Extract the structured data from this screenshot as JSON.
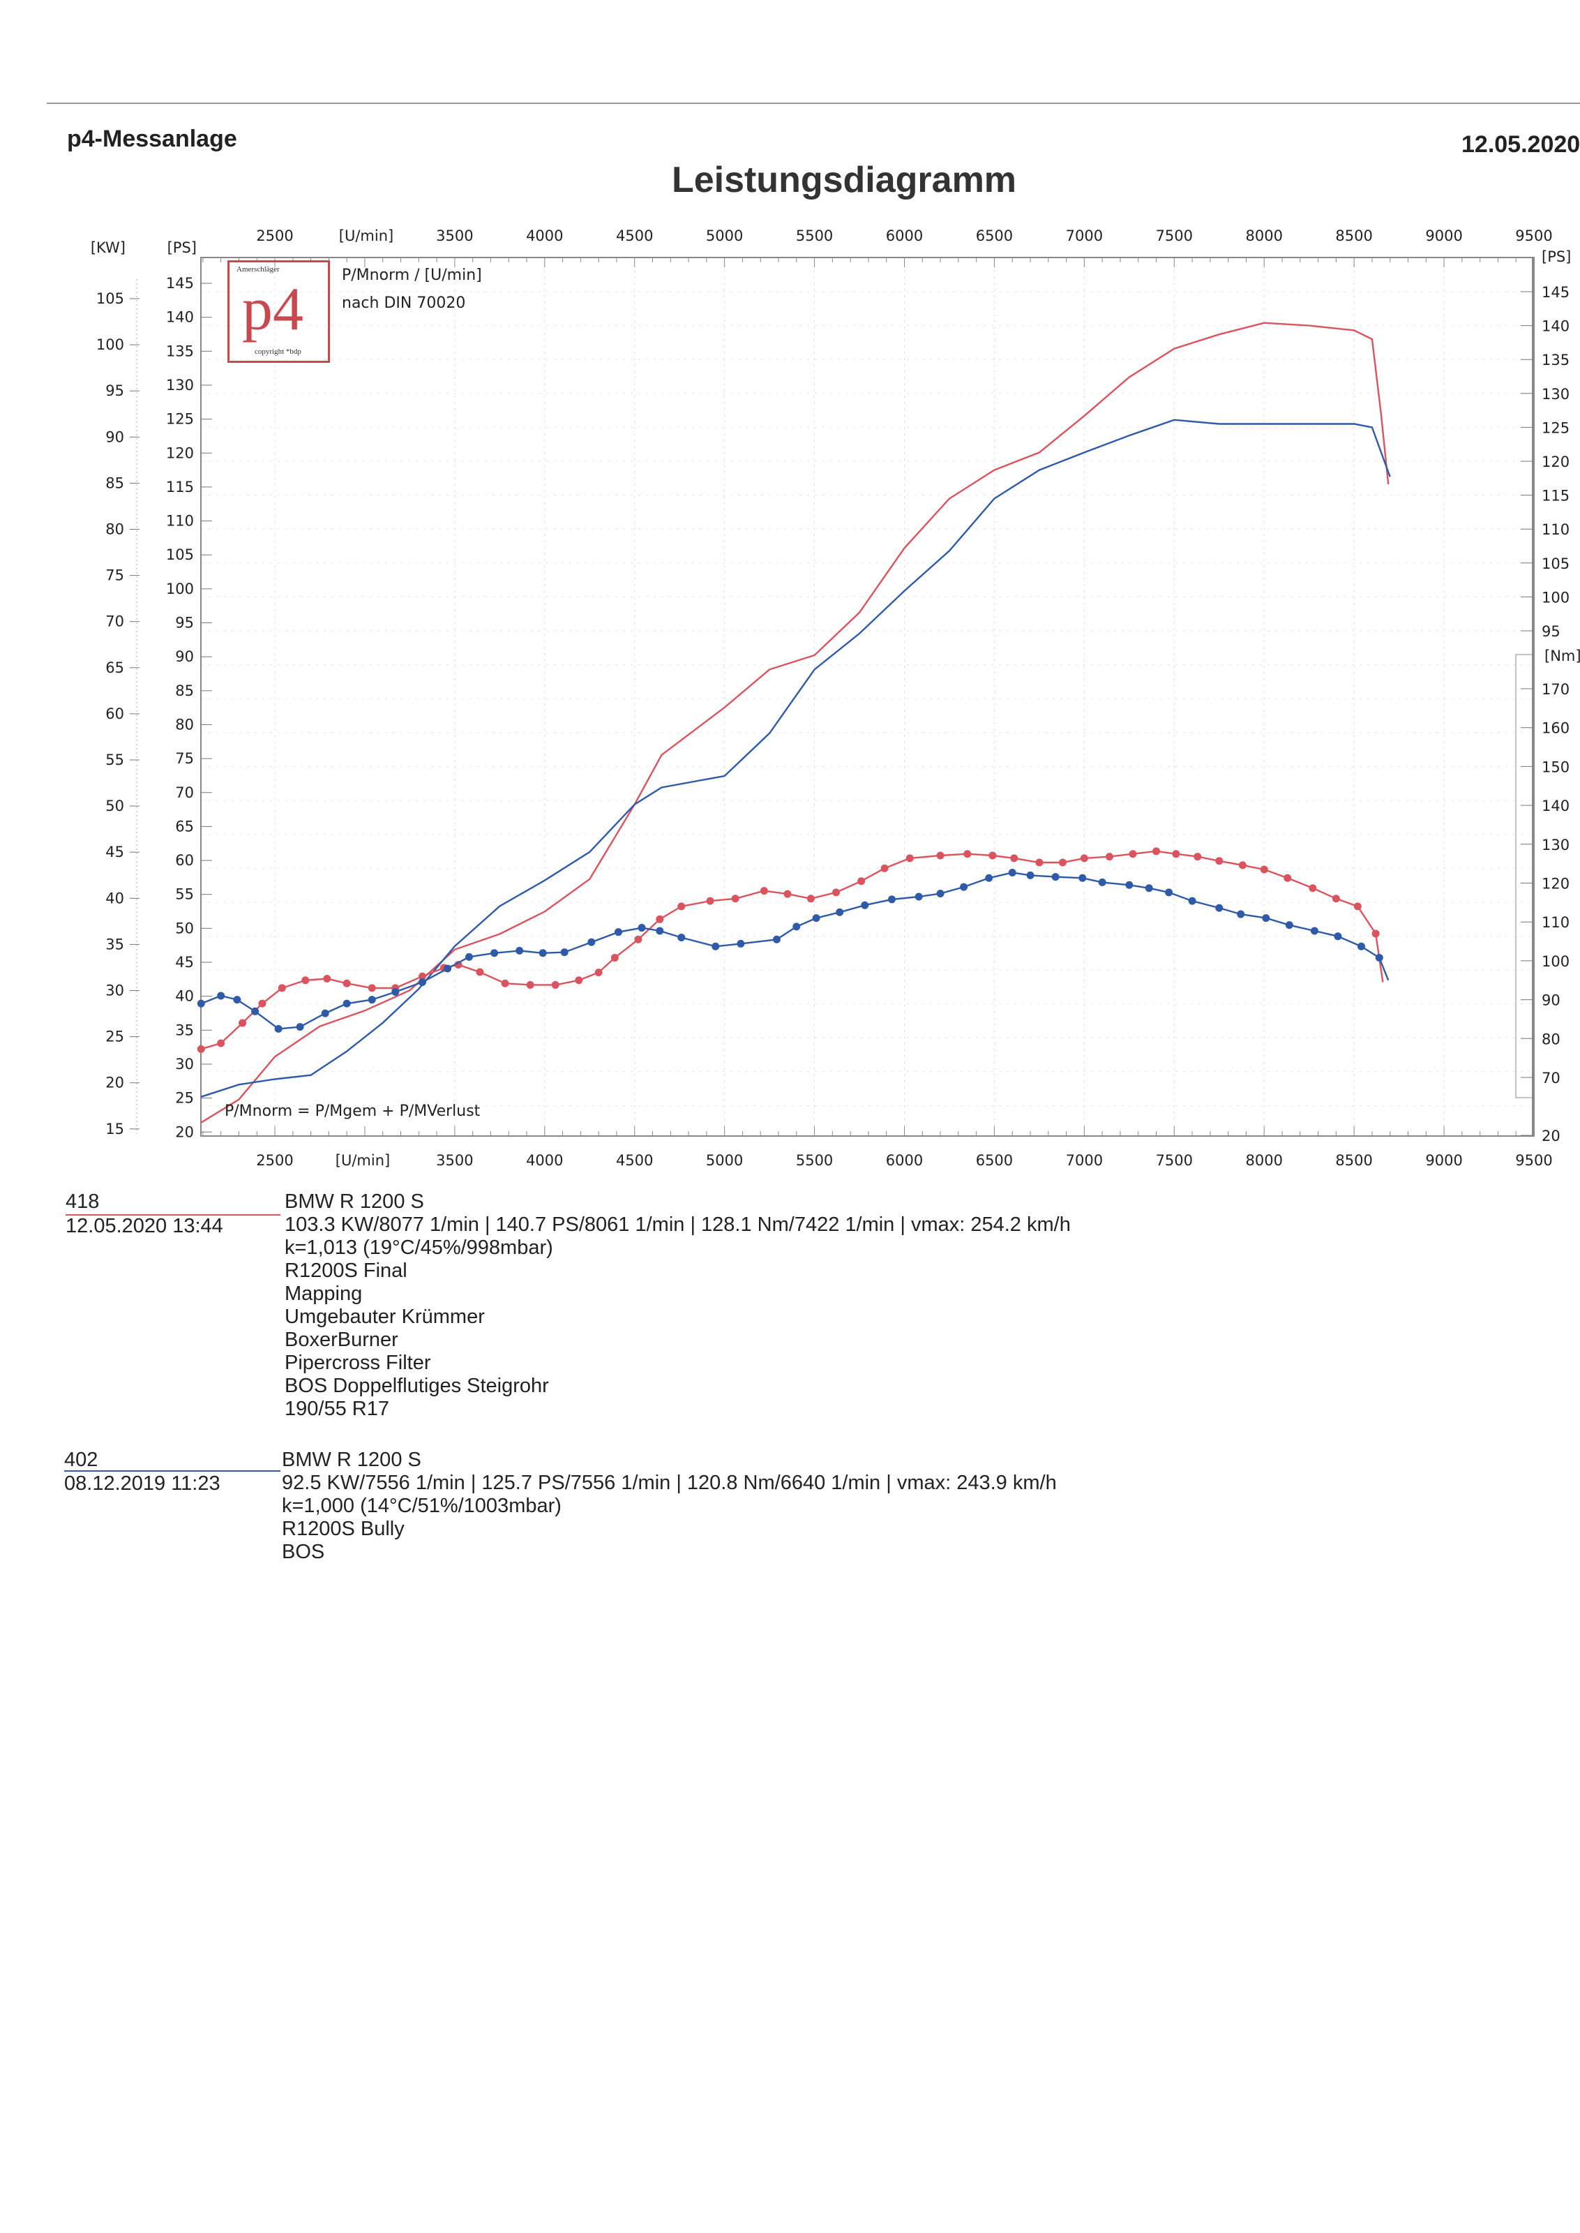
{
  "header": {
    "app": "p4-Messanlage",
    "date": "12.05.2020",
    "title": "Leistungsdiagramm"
  },
  "legend": {
    "line1": "P/Mnorm / [U/min]",
    "line2": "nach DIN 70020",
    "formula": "P/Mnorm = P/Mgem + P/MVerlust"
  },
  "logo": {
    "text": "p4",
    "top": "Amerschläger",
    "bottom": "copyright *bdp"
  },
  "colors": {
    "run_2020": "#d9545e",
    "run_2019": "#2e5aa8"
  },
  "chart_data": {
    "type": "line",
    "title": "Leistungsdiagramm",
    "xlabel": "[U/min]",
    "x_ticks": [
      2500,
      3500,
      4000,
      4500,
      5000,
      5500,
      6000,
      6500,
      7000,
      7500,
      8000,
      8500,
      9000,
      9500
    ],
    "xlim": [
      2090,
      9500
    ],
    "axes": {
      "kw": {
        "label": "[KW]",
        "ticks": [
          15,
          20,
          25,
          30,
          35,
          40,
          45,
          50,
          55,
          60,
          65,
          70,
          75,
          80,
          85,
          90,
          95,
          100,
          105
        ]
      },
      "ps_left": {
        "label": "[PS]",
        "ticks": [
          20,
          25,
          30,
          35,
          40,
          45,
          50,
          55,
          60,
          65,
          70,
          75,
          80,
          85,
          90,
          95,
          100,
          105,
          110,
          115,
          120,
          125,
          130,
          135,
          140,
          145
        ]
      },
      "ps_right": {
        "label": "[PS]",
        "ticks": [
          20,
          95,
          100,
          105,
          110,
          115,
          120,
          125,
          130,
          135,
          140,
          145
        ]
      },
      "nm": {
        "label": "[Nm]",
        "ticks": [
          70,
          80,
          90,
          100,
          110,
          120,
          130,
          140,
          150,
          160,
          170
        ]
      }
    },
    "grid": true,
    "series": [
      {
        "run": "418",
        "kind": "power_ps",
        "color": "#d9545e",
        "rpm": [
          2090,
          2300,
          2500,
          2750,
          3000,
          3250,
          3500,
          3750,
          4000,
          4250,
          4500,
          4650,
          5000,
          5250,
          5500,
          5750,
          6000,
          6250,
          6500,
          6750,
          7000,
          7250,
          7500,
          7750,
          8000,
          8250,
          8500,
          8600,
          8650,
          8690
        ],
        "values": [
          22.5,
          25.9,
          32.2,
          36.7,
          39,
          42,
          48,
          50.3,
          53.6,
          58.4,
          69.4,
          76.7,
          83.7,
          89.3,
          91.4,
          97.7,
          107.2,
          114.5,
          118.7,
          121.3,
          126.7,
          132.4,
          136.6,
          138.7,
          140.4,
          140,
          139.3,
          138,
          127,
          116.6
        ]
      },
      {
        "run": "402",
        "kind": "power_ps",
        "color": "#2e5aa8",
        "rpm": [
          2090,
          2300,
          2500,
          2700,
          2900,
          3100,
          3300,
          3500,
          3750,
          4000,
          4250,
          4500,
          4650,
          5000,
          5250,
          5500,
          5750,
          6000,
          6250,
          6500,
          6750,
          7000,
          7250,
          7500,
          7750,
          8000,
          8250,
          8500,
          8600,
          8700
        ],
        "values": [
          26.3,
          28.1,
          28.9,
          29.5,
          33,
          37.2,
          42.2,
          48.5,
          54.4,
          58.2,
          62.4,
          69.4,
          71.9,
          73.6,
          79.9,
          89.3,
          94.6,
          100.9,
          106.8,
          114.5,
          118.7,
          121.3,
          123.8,
          126.1,
          125.5,
          125.5,
          125.5,
          125.5,
          125,
          117.7
        ]
      },
      {
        "run": "418",
        "kind": "torque_nm",
        "color": "#d9545e",
        "rpm": [
          2090,
          2200,
          2320,
          2430,
          2540,
          2670,
          2790,
          2900,
          3040,
          3170,
          3320,
          3440,
          3520,
          3640,
          3780,
          3920,
          4060,
          4190,
          4300,
          4390,
          4520,
          4640,
          4760,
          4920,
          5060,
          5220,
          5350,
          5480,
          5620,
          5760,
          5890,
          6030,
          6200,
          6350,
          6490,
          6610,
          6750,
          6880,
          7000,
          7140,
          7270,
          7400,
          7510,
          7630,
          7750,
          7880,
          8000,
          8130,
          8270,
          8400,
          8520,
          8620,
          8660
        ],
        "values": [
          77.3,
          78.8,
          84,
          89,
          93,
          95,
          95.4,
          94.2,
          93,
          93,
          96,
          98.2,
          99,
          97.1,
          94.2,
          93.8,
          93.8,
          95,
          97,
          100.8,
          105.5,
          110.7,
          114,
          115.4,
          116,
          118,
          117.2,
          116,
          117.6,
          120.5,
          123.8,
          126.4,
          127.1,
          127.5,
          127.1,
          126.4,
          125.3,
          125.3,
          126.4,
          126.8,
          127.5,
          128.2,
          127.5,
          126.8,
          125.7,
          124.6,
          123.5,
          121.3,
          118.7,
          116,
          114,
          107,
          94.5
        ]
      },
      {
        "run": "402",
        "kind": "torque_nm",
        "color": "#2e5aa8",
        "rpm": [
          2090,
          2200,
          2290,
          2390,
          2520,
          2640,
          2780,
          2900,
          3040,
          3170,
          3320,
          3460,
          3580,
          3720,
          3860,
          3990,
          4110,
          4260,
          4410,
          4540,
          4640,
          4760,
          4950,
          5090,
          5290,
          5400,
          5510,
          5640,
          5780,
          5930,
          6080,
          6200,
          6330,
          6470,
          6600,
          6700,
          6840,
          6990,
          7100,
          7250,
          7360,
          7470,
          7600,
          7750,
          7870,
          8010,
          8140,
          8280,
          8410,
          8540,
          8640,
          8690
        ],
        "values": [
          89,
          91,
          90,
          87,
          82.5,
          83,
          86.5,
          89,
          90,
          92,
          94.5,
          98,
          101,
          102,
          102.6,
          102,
          102.2,
          104.8,
          107.4,
          108.5,
          107.7,
          106,
          103.7,
          104.4,
          105.5,
          108.8,
          111,
          112.5,
          114.3,
          115.8,
          116.5,
          117.3,
          119,
          121.3,
          122.7,
          122,
          121.6,
          121.3,
          120.2,
          119.5,
          118.7,
          117.6,
          115.4,
          113.6,
          112,
          111,
          109.2,
          107.7,
          106.3,
          103.7,
          100.8,
          95
        ]
      }
    ]
  },
  "runs": [
    {
      "id": "418",
      "datetime": "12.05.2020 13:44",
      "color": "#d9545e",
      "lines": [
        "BMW R 1200 S",
        "103.3 KW/8077 1/min  |  140.7 PS/8061 1/min  |  128.1 Nm/7422 1/min | vmax: 254.2 km/h",
        "k=1,013 (19°C/45%/998mbar)",
        "R1200S Final",
        "Mapping",
        "Umgebauter Krümmer",
        "BoxerBurner",
        "Pipercross Filter",
        "BOS Doppelflutiges Steigrohr",
        "190/55 R17"
      ]
    },
    {
      "id": "402",
      "datetime": "08.12.2019 11:23",
      "color": "#2e5aa8",
      "lines": [
        "BMW R 1200 S",
        "92.5 KW/7556 1/min  |  125.7 PS/7556 1/min  |  120.8 Nm/6640 1/min | vmax: 243.9 km/h",
        "k=1,000 (14°C/51%/1003mbar)",
        "R1200S Bully",
        "BOS"
      ]
    }
  ]
}
